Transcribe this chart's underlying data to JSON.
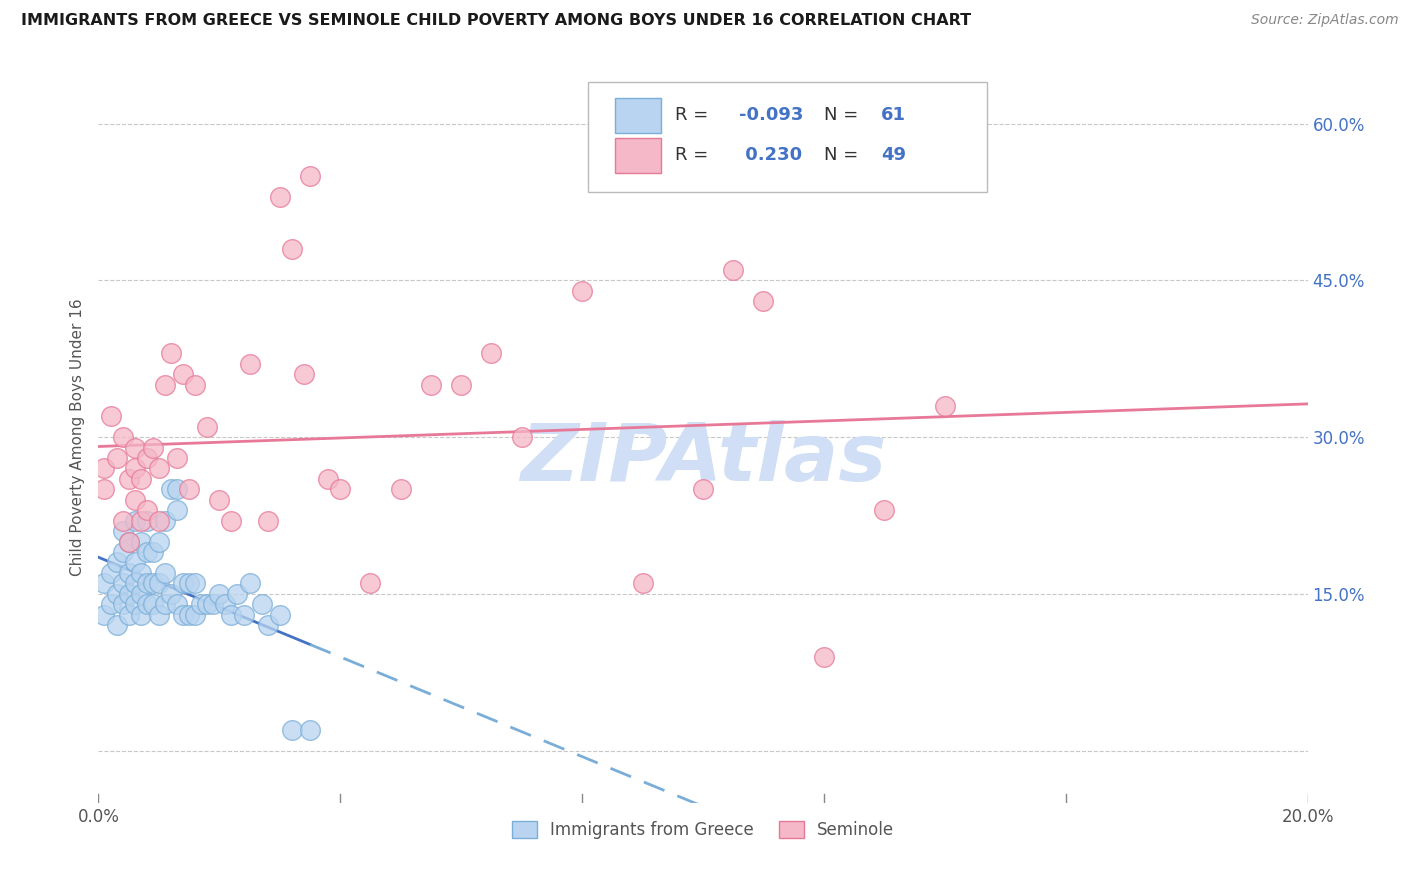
{
  "title": "IMMIGRANTS FROM GREECE VS SEMINOLE CHILD POVERTY AMONG BOYS UNDER 16 CORRELATION CHART",
  "source": "Source: ZipAtlas.com",
  "ylabel": "Child Poverty Among Boys Under 16",
  "xlim": [
    0.0,
    0.2
  ],
  "ylim": [
    -0.05,
    0.65
  ],
  "yticks": [
    0.0,
    0.15,
    0.3,
    0.45,
    0.6
  ],
  "yticklabels_right": [
    "",
    "15.0%",
    "30.0%",
    "45.0%",
    "60.0%"
  ],
  "xtick_positions": [
    0.0,
    0.04,
    0.08,
    0.12,
    0.16,
    0.2
  ],
  "xticklabels": [
    "0.0%",
    "",
    "",
    "",
    "",
    "20.0%"
  ],
  "legend_R1": "-0.093",
  "legend_N1": "61",
  "legend_R2": "0.230",
  "legend_N2": "49",
  "color_blue_fill": "#b8d4f0",
  "color_blue_edge": "#7aaed8",
  "color_blue_line_solid": "#4472c4",
  "color_blue_line_dash": "#7aaed8",
  "color_pink_fill": "#f4b8c8",
  "color_pink_edge": "#e87898",
  "color_pink_line": "#e87898",
  "color_right_axis": "#4472c4",
  "watermark_color": "#d0dff5",
  "blue_x": [
    0.001,
    0.001,
    0.002,
    0.002,
    0.003,
    0.003,
    0.003,
    0.004,
    0.004,
    0.004,
    0.004,
    0.005,
    0.005,
    0.005,
    0.005,
    0.006,
    0.006,
    0.006,
    0.006,
    0.007,
    0.007,
    0.007,
    0.007,
    0.008,
    0.008,
    0.008,
    0.008,
    0.009,
    0.009,
    0.009,
    0.01,
    0.01,
    0.01,
    0.011,
    0.011,
    0.011,
    0.012,
    0.012,
    0.013,
    0.013,
    0.013,
    0.014,
    0.014,
    0.015,
    0.015,
    0.016,
    0.016,
    0.017,
    0.018,
    0.019,
    0.02,
    0.021,
    0.022,
    0.023,
    0.024,
    0.025,
    0.027,
    0.028,
    0.03,
    0.032,
    0.035
  ],
  "blue_y": [
    0.13,
    0.16,
    0.14,
    0.17,
    0.12,
    0.15,
    0.18,
    0.14,
    0.16,
    0.19,
    0.21,
    0.13,
    0.15,
    0.17,
    0.2,
    0.14,
    0.16,
    0.18,
    0.22,
    0.13,
    0.15,
    0.17,
    0.2,
    0.14,
    0.16,
    0.19,
    0.22,
    0.14,
    0.16,
    0.19,
    0.13,
    0.16,
    0.2,
    0.14,
    0.17,
    0.22,
    0.15,
    0.25,
    0.23,
    0.25,
    0.14,
    0.13,
    0.16,
    0.13,
    0.16,
    0.13,
    0.16,
    0.14,
    0.14,
    0.14,
    0.15,
    0.14,
    0.13,
    0.15,
    0.13,
    0.16,
    0.14,
    0.12,
    0.13,
    0.02,
    0.02
  ],
  "pink_x": [
    0.001,
    0.001,
    0.002,
    0.003,
    0.004,
    0.004,
    0.005,
    0.005,
    0.006,
    0.006,
    0.006,
    0.007,
    0.007,
    0.008,
    0.008,
    0.009,
    0.01,
    0.01,
    0.011,
    0.012,
    0.013,
    0.014,
    0.015,
    0.016,
    0.018,
    0.02,
    0.022,
    0.025,
    0.028,
    0.03,
    0.032,
    0.034,
    0.035,
    0.038,
    0.04,
    0.045,
    0.05,
    0.055,
    0.06,
    0.065,
    0.07,
    0.08,
    0.09,
    0.1,
    0.105,
    0.11,
    0.12,
    0.13,
    0.14
  ],
  "pink_y": [
    0.25,
    0.27,
    0.32,
    0.28,
    0.22,
    0.3,
    0.26,
    0.2,
    0.27,
    0.24,
    0.29,
    0.26,
    0.22,
    0.28,
    0.23,
    0.29,
    0.22,
    0.27,
    0.35,
    0.38,
    0.28,
    0.36,
    0.25,
    0.35,
    0.31,
    0.24,
    0.22,
    0.37,
    0.22,
    0.53,
    0.48,
    0.36,
    0.55,
    0.26,
    0.25,
    0.16,
    0.25,
    0.35,
    0.35,
    0.38,
    0.3,
    0.44,
    0.16,
    0.25,
    0.46,
    0.43,
    0.09,
    0.23,
    0.33
  ]
}
